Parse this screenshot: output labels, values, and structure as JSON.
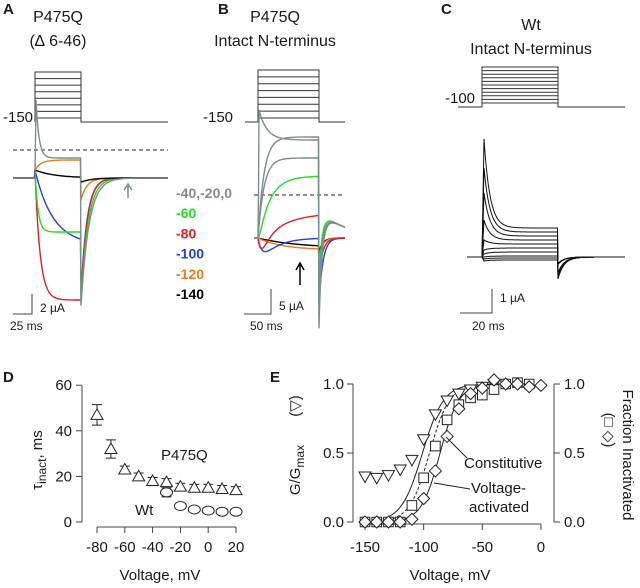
{
  "panels": {
    "A": {
      "letter": "A",
      "title1": "P475Q",
      "title2": "(∆ 6-46)",
      "holding": "-150",
      "legend": [
        {
          "label": "-40,-20,0",
          "color": "#7f8c8d"
        },
        {
          "label": "-60",
          "color": "#22dd22"
        },
        {
          "label": "-80",
          "color": "#e02020"
        },
        {
          "label": "-100",
          "color": "#2040e0"
        },
        {
          "label": "-120",
          "color": "#f07820"
        },
        {
          "label": "-140",
          "color": "#000000"
        }
      ],
      "scale_y": "2 µA",
      "scale_x": "25 ms"
    },
    "B": {
      "letter": "B",
      "title1": "P475Q",
      "title2": "Intact N-terminus",
      "holding": "-150",
      "scale_y": "5 µA",
      "scale_x": "50 ms"
    },
    "C": {
      "letter": "C",
      "title1": "Wt",
      "title2": "Intact N-terminus",
      "holding": "-100",
      "scale_y": "1 µA",
      "scale_x": "20 ms"
    }
  },
  "chart_data": [
    {
      "panel": "D",
      "type": "scatter",
      "xlabel": "Voltage, mV",
      "ylabel": "τ",
      "ylabel_sub": "inact",
      "ylabel_unit": ", ms",
      "xlim": [
        -85,
        22
      ],
      "ylim": [
        0,
        60
      ],
      "xticks": [
        -80,
        -60,
        -40,
        -20,
        0,
        20
      ],
      "yticks": [
        0,
        20,
        40,
        60
      ],
      "grid": false,
      "series": [
        {
          "name": "P475Q",
          "marker": "triangle-up",
          "x": [
            -80,
            -70,
            -60,
            -50,
            -40,
            -30,
            -20,
            -10,
            0,
            10,
            20
          ],
          "y": [
            47,
            32,
            23,
            20,
            18,
            17.5,
            15.5,
            15,
            15,
            14.5,
            14
          ],
          "err": [
            4.5,
            4,
            1.5,
            1.5,
            1.5,
            1.5,
            1.5,
            1.5,
            1.5,
            1.5,
            1.5
          ]
        },
        {
          "name": "Wt",
          "marker": "circle",
          "x": [
            -30,
            -20,
            -10,
            0,
            10,
            20
          ],
          "y": [
            13,
            7,
            5.5,
            5,
            4.5,
            4.5
          ],
          "err": [
            2,
            1,
            0.5,
            0.5,
            0.5,
            0.5
          ]
        }
      ]
    },
    {
      "panel": "E",
      "type": "scatter",
      "xlabel": "Voltage, mV",
      "ylabel_left": "G/G",
      "ylabel_left_sub": "max",
      "ylabel_left_marker": "(▽)",
      "ylabel_right": "Fraction Inactivated",
      "ylabel_right_markers": "(□ ◇)",
      "xlim": [
        -155,
        0
      ],
      "ylim": [
        0,
        1.0
      ],
      "xticks": [
        -150,
        -100,
        -50,
        0
      ],
      "yticks": [
        "0.0",
        "0.5",
        "1.0"
      ],
      "grid": false,
      "series": [
        {
          "name": "G/Gmax",
          "marker": "triangle-down",
          "x": [
            -150,
            -140,
            -130,
            -120,
            -110,
            -100,
            -90,
            -80,
            -70,
            -60,
            -50,
            -40
          ],
          "y": [
            0.33,
            0.32,
            0.34,
            0.38,
            0.45,
            0.6,
            0.78,
            0.88,
            0.93,
            0.96,
            0.98,
            1.0
          ]
        },
        {
          "name": "Fraction Inactivated (square)",
          "marker": "square",
          "x": [
            -150,
            -140,
            -130,
            -120,
            -110,
            -100,
            -90,
            -80,
            -70,
            -60,
            -50,
            -40,
            -30,
            -20,
            -10
          ],
          "y": [
            0,
            0,
            0,
            0,
            0.12,
            0.32,
            0.55,
            0.74,
            0.85,
            0.9,
            0.92,
            0.96,
            1.0,
            1.01,
            1.0
          ]
        },
        {
          "name": "Fraction Inactivated (diamond)",
          "marker": "diamond",
          "x": [
            -150,
            -140,
            -130,
            -120,
            -110,
            -100,
            -90,
            -80,
            -70,
            -60,
            -50,
            -40,
            -30,
            -20,
            -10,
            0
          ],
          "y": [
            0,
            0,
            0,
            0,
            0.02,
            0.17,
            0.37,
            0.62,
            0.82,
            0.93,
            0.97,
            1.03,
            1.0,
            1.0,
            0.98,
            0.99
          ]
        }
      ],
      "fits": [
        {
          "style": "solid",
          "v_half": -101,
          "slope": 9
        },
        {
          "style": "dashed",
          "v_half": -95,
          "slope": 8.5
        },
        {
          "style": "solid",
          "v_half": -86,
          "slope": 8
        }
      ],
      "annotations": [
        "Constitutive",
        "Voltage-",
        "activated"
      ]
    }
  ]
}
